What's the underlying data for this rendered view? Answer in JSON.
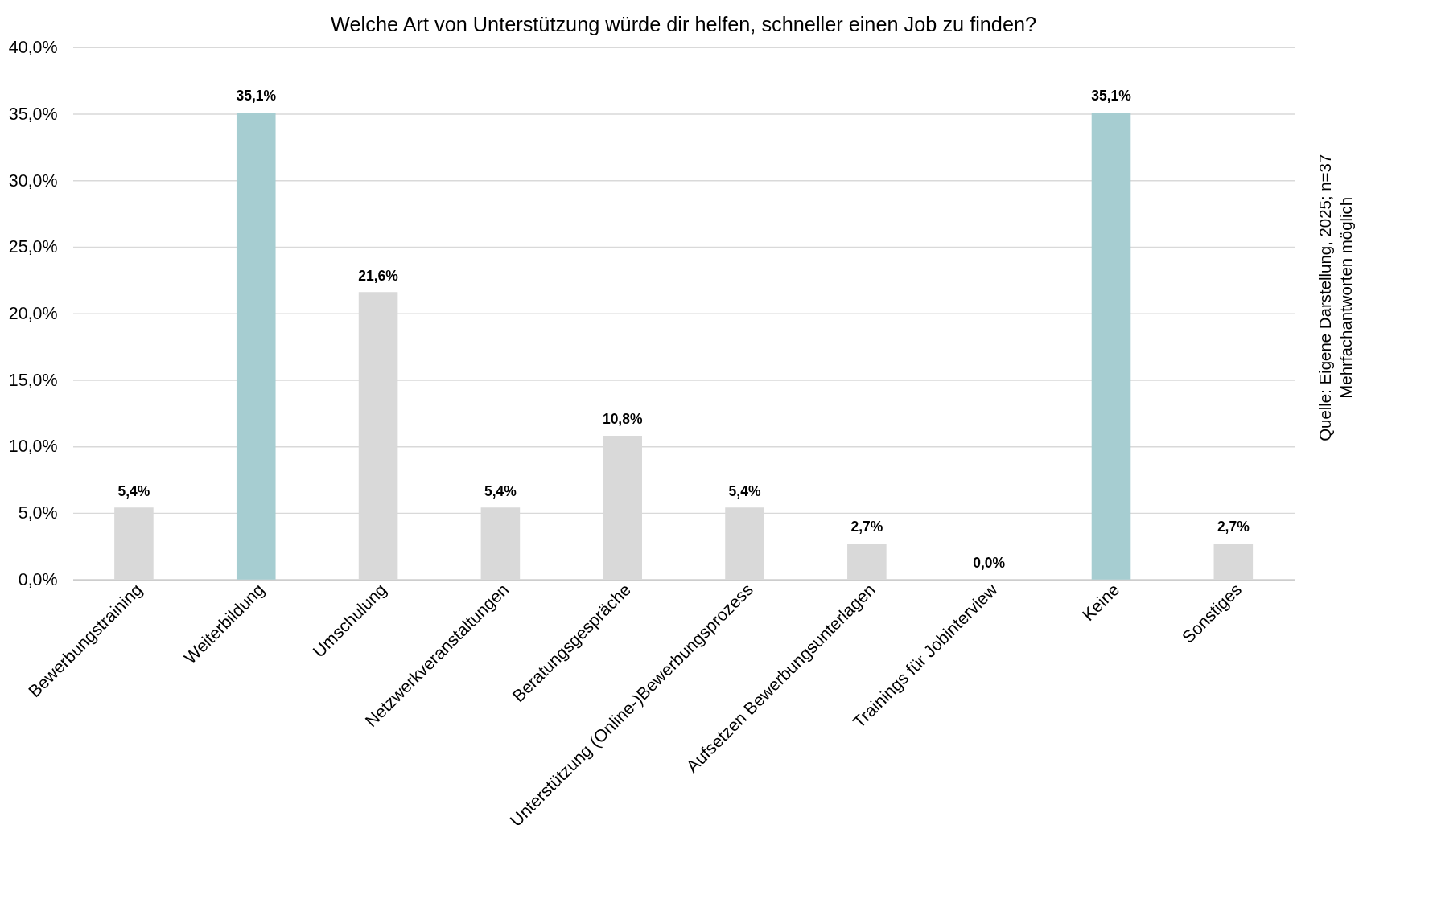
{
  "chart_data": {
    "type": "bar",
    "title": "Welche Art von Unterstützung würde dir helfen, schneller einen Job zu finden?",
    "categories": [
      "Bewerbungstraining",
      "Weiterbildung",
      "Umschulung",
      "Netzwerkveranstaltungen",
      "Beratungsgespräche",
      "Unterstützung (Online-)Bewerbungsprozess",
      "Aufsetzen Bewerbungsunterlagen",
      "Trainings für Jobinterview",
      "Keine",
      "Sonstiges"
    ],
    "values": [
      5.4,
      35.1,
      21.6,
      5.4,
      10.8,
      5.4,
      2.7,
      0.0,
      35.1,
      2.7
    ],
    "value_labels": [
      "5,4%",
      "35,1%",
      "21,6%",
      "5,4%",
      "10,8%",
      "5,4%",
      "2,7%",
      "0,0%",
      "35,1%",
      "2,7%"
    ],
    "colors": [
      "#d9d9d9",
      "#a6cdd1",
      "#d9d9d9",
      "#d9d9d9",
      "#d9d9d9",
      "#d9d9d9",
      "#d9d9d9",
      "#d9d9d9",
      "#a6cdd1",
      "#d9d9d9"
    ],
    "ylim": [
      0,
      40
    ],
    "yticks": [
      {
        "value": 0,
        "label": "0,0%"
      },
      {
        "value": 5,
        "label": "5,0%"
      },
      {
        "value": 10,
        "label": "10,0%"
      },
      {
        "value": 15,
        "label": "15,0%"
      },
      {
        "value": 20,
        "label": "20,0%"
      },
      {
        "value": 25,
        "label": "25,0%"
      },
      {
        "value": 30,
        "label": "30,0%"
      },
      {
        "value": 35,
        "label": "35,0%"
      },
      {
        "value": 40,
        "label": "40,0%"
      }
    ],
    "grid": "y",
    "annotations": [
      "Quelle: Eigene Darstellung, 2025; n=37",
      "Mehrfachantworten möglich"
    ]
  }
}
